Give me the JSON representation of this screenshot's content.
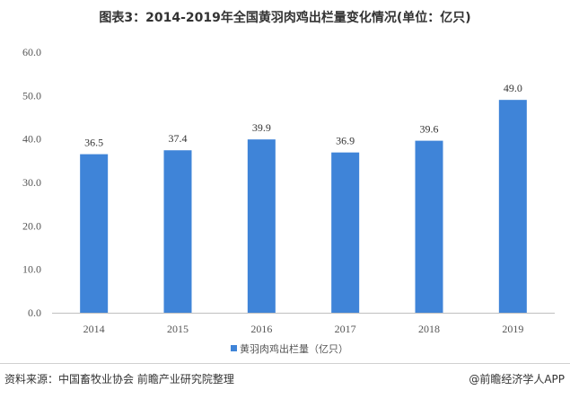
{
  "chart_data": {
    "type": "bar",
    "title": "图表3：2014-2019年全国黄羽肉鸡出栏量变化情况(单位：亿只)",
    "categories": [
      "2014",
      "2015",
      "2016",
      "2017",
      "2018",
      "2019"
    ],
    "series": [
      {
        "name": "黄羽肉鸡出栏量（亿只）",
        "values": [
          36.5,
          37.4,
          39.9,
          36.9,
          39.6,
          49.0
        ],
        "color": "#3f84d8"
      }
    ],
    "y_ticks": [
      "0.0",
      "10.0",
      "20.0",
      "30.0",
      "40.0",
      "50.0",
      "60.0"
    ],
    "ylim": [
      0,
      60
    ],
    "data_labels": [
      "36.5",
      "37.4",
      "39.9",
      "36.9",
      "39.6",
      "49.0"
    ],
    "grid": false,
    "legend_position": "bottom"
  },
  "footer": {
    "source": "资料来源：中国畜牧业协会 前瞻产业研究院整理",
    "brand": "@前瞻经济学人APP"
  }
}
